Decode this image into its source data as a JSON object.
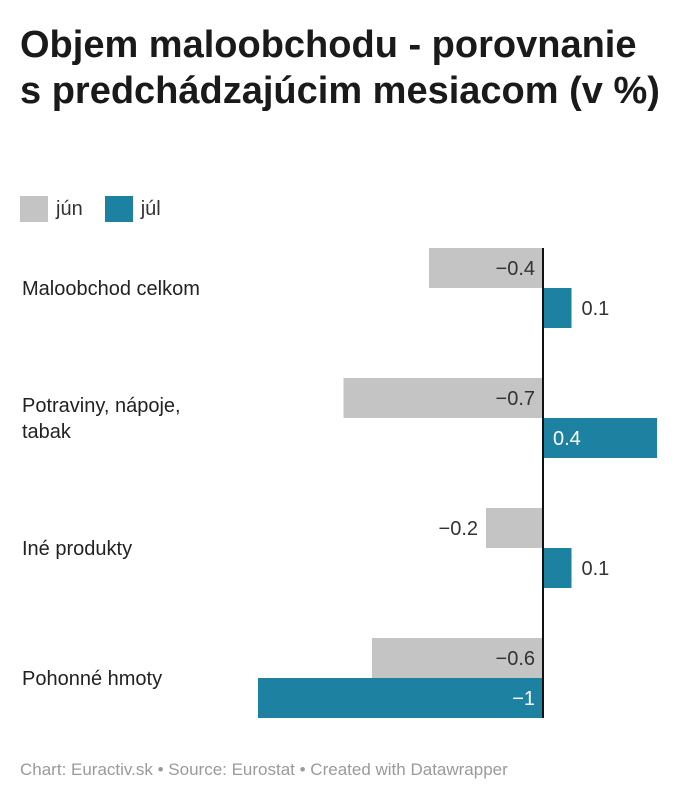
{
  "title": "Objem maloobchodu - porovnanie s predchádzajúcim mesiacom (v %)",
  "footer": "Chart: Euractiv.sk • Source: Eurostat • Created with Datawrapper",
  "chart_data": {
    "type": "bar",
    "orientation": "horizontal",
    "title": "Objem maloobchodu - porovnanie s predchádzajúcim mesiacom (v %)",
    "categories": [
      "Maloobchod celkom",
      "Potraviny, nápoje, tabak",
      "Iné produkty",
      "Pohonné hmoty"
    ],
    "series": [
      {
        "name": "jún",
        "color": "#c4c4c4",
        "values": [
          -0.4,
          -0.7,
          -0.2,
          -0.6
        ],
        "labels": [
          "−0.4",
          "−0.7",
          "−0.2",
          "−0.6"
        ]
      },
      {
        "name": "júl",
        "color": "#1d81a2",
        "values": [
          0.1,
          0.4,
          0.1,
          -1
        ],
        "labels": [
          "0.1",
          "0.4",
          "0.1",
          "−1"
        ]
      }
    ],
    "legend": "top-left",
    "grid": false
  }
}
